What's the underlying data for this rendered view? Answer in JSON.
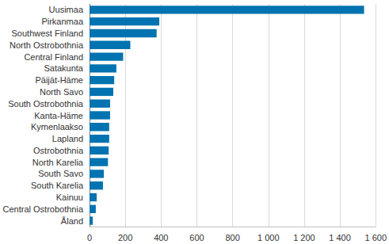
{
  "chart_data": {
    "type": "bar",
    "orientation": "horizontal",
    "categories": [
      "Uusimaa",
      "Pirkanmaa",
      "Southwest Finland",
      "North Ostrobothnia",
      "Central Finland",
      "Satakunta",
      "Päijät-Häme",
      "North Savo",
      "South Ostrobothnia",
      "Kanta-Häme",
      "Kymenlaakso",
      "Lapland",
      "Ostrobothnia",
      "North Karelia",
      "South Savo",
      "South Karelia",
      "Kainuu",
      "Central Ostrobothnia",
      "Åland"
    ],
    "values": [
      1535,
      390,
      375,
      228,
      188,
      150,
      138,
      133,
      115,
      115,
      110,
      110,
      107,
      103,
      80,
      75,
      40,
      35,
      18
    ],
    "color": "#0073b0",
    "xlim": [
      0,
      1600
    ],
    "xticks": [
      0,
      200,
      400,
      600,
      800,
      {
        "value": 1000,
        "label": "1 000"
      },
      {
        "value": 1200,
        "label": "1 200"
      },
      {
        "value": 1400,
        "label": "1 400"
      },
      {
        "value": 1600,
        "label": "1 600"
      }
    ],
    "grid": true
  }
}
